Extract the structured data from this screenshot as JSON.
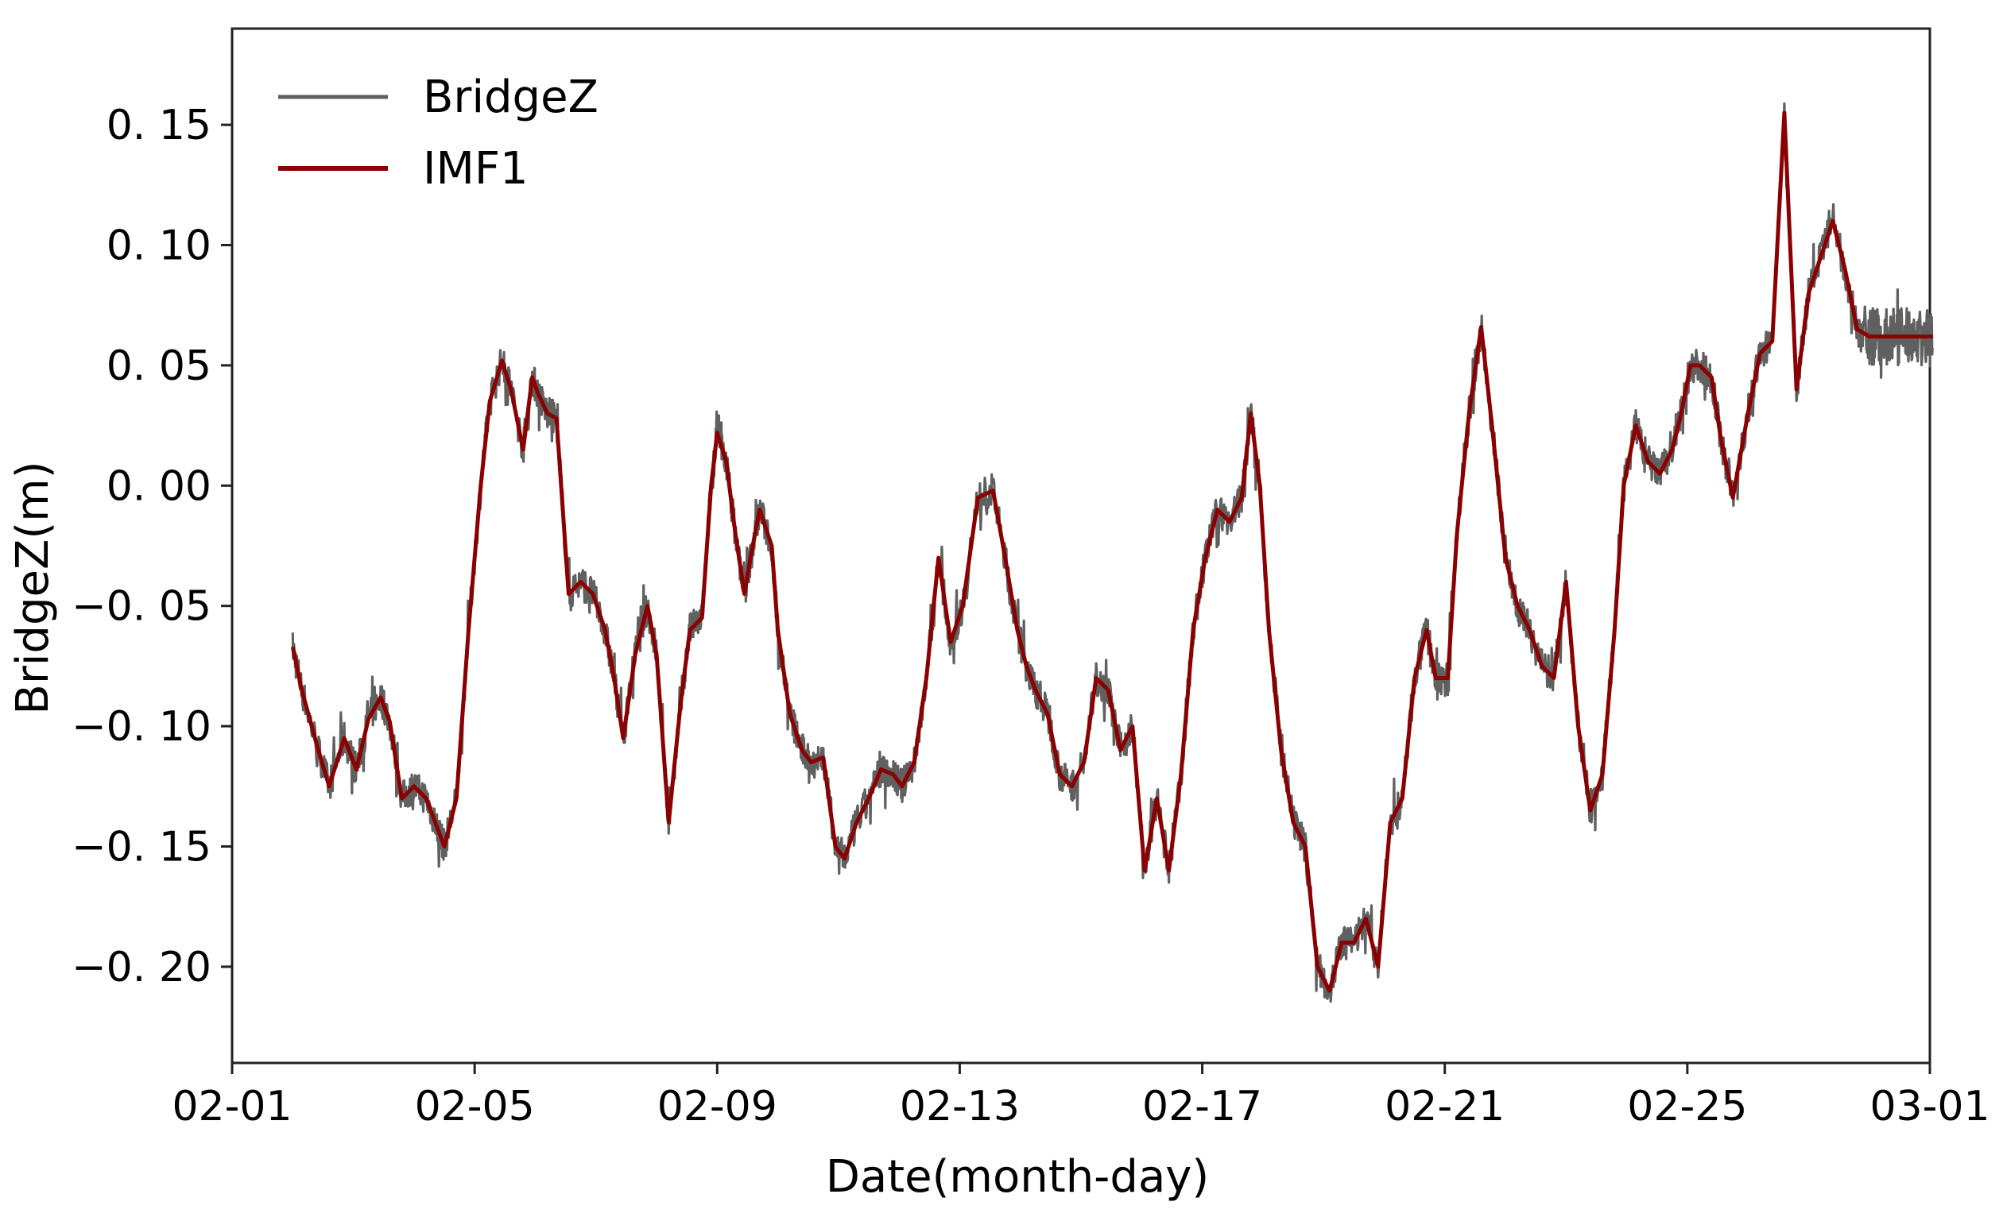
{
  "chart_data": {
    "type": "line",
    "xlabel": "Date(month-day)",
    "ylabel": "BridgeZ(m)",
    "xlim": [
      "02-01",
      "03-01"
    ],
    "ylim": [
      -0.24,
      0.19
    ],
    "x_ticks": [
      "02-01",
      "02-05",
      "02-09",
      "02-13",
      "02-17",
      "02-21",
      "02-25",
      "03-01"
    ],
    "y_ticks": [
      {
        "value": 0.15,
        "label": "0. 15"
      },
      {
        "value": 0.1,
        "label": "0. 10"
      },
      {
        "value": 0.05,
        "label": "0. 05"
      },
      {
        "value": 0.0,
        "label": "0. 00"
      },
      {
        "value": -0.05,
        "label": "−0. 05"
      },
      {
        "value": -0.1,
        "label": "−0. 10"
      },
      {
        "value": -0.15,
        "label": "−0. 15"
      },
      {
        "value": -0.2,
        "label": "−0. 20"
      }
    ],
    "legend_position": "top-left",
    "grid": false,
    "series": [
      {
        "name": "BridgeZ",
        "color": "#606060",
        "noisy": true
      },
      {
        "name": "IMF1",
        "color": "#8b0000",
        "noisy": false
      }
    ],
    "shared_x_days": [
      1.0,
      1.15,
      1.4,
      1.6,
      1.85,
      2.05,
      2.25,
      2.45,
      2.6,
      2.8,
      3.0,
      3.2,
      3.35,
      3.5,
      3.7,
      3.9,
      4.1,
      4.25,
      4.45,
      4.6,
      4.8,
      4.95,
      5.05,
      5.2,
      5.35,
      5.55,
      5.75,
      5.95,
      6.15,
      6.3,
      6.45,
      6.65,
      6.85,
      7.0,
      7.2,
      7.4,
      7.55,
      7.75,
      7.9,
      8.0,
      8.15,
      8.3,
      8.45,
      8.55,
      8.7,
      8.9,
      9.0,
      9.2,
      9.4,
      9.55,
      9.75,
      9.95,
      10.1,
      10.3,
      10.5,
      10.7,
      10.9,
      11.05,
      11.25,
      11.45,
      11.65,
      11.85,
      12.05,
      12.3,
      12.55,
      12.75,
      12.95,
      13.1,
      13.25,
      13.45,
      13.65,
      13.85,
      14.05,
      14.25,
      14.45,
      14.65,
      14.85,
      15.05,
      15.25,
      15.45,
      15.65,
      15.85,
      16.05,
      16.25,
      16.45,
      16.65,
      16.8,
      16.95,
      17.1,
      17.3,
      17.5,
      17.7,
      17.9,
      18.1,
      18.3,
      18.5,
      18.7,
      18.9,
      19.1,
      19.3,
      19.5,
      19.7,
      19.85,
      20.05,
      20.2,
      20.4,
      20.6,
      20.8,
      21.0,
      21.2,
      21.4,
      21.6,
      21.8,
      22.0,
      22.2,
      22.4,
      22.6,
      22.8,
      22.95,
      23.15,
      23.35,
      23.55,
      23.75,
      23.9,
      24.05,
      24.2,
      24.4,
      24.55,
      24.75,
      25.0,
      25.2,
      25.4,
      25.6,
      25.8,
      26.0,
      26.2,
      26.4,
      26.6,
      26.8,
      27.0,
      27.1,
      27.25,
      27.4,
      27.55,
      27.7,
      27.9,
      28.05,
      28.2
    ],
    "shared_y_imf1": [
      -0.067,
      -0.085,
      -0.108,
      -0.125,
      -0.105,
      -0.118,
      -0.097,
      -0.088,
      -0.098,
      -0.13,
      -0.125,
      -0.13,
      -0.14,
      -0.15,
      -0.13,
      -0.06,
      0.0,
      0.035,
      0.052,
      0.04,
      0.015,
      0.045,
      0.038,
      0.03,
      0.028,
      -0.045,
      -0.04,
      -0.045,
      -0.06,
      -0.08,
      -0.105,
      -0.07,
      -0.05,
      -0.07,
      -0.14,
      -0.09,
      -0.06,
      -0.055,
      0.0,
      0.022,
      0.01,
      -0.02,
      -0.045,
      -0.03,
      -0.01,
      -0.025,
      -0.06,
      -0.095,
      -0.11,
      -0.115,
      -0.113,
      -0.15,
      -0.155,
      -0.14,
      -0.13,
      -0.118,
      -0.12,
      -0.125,
      -0.115,
      -0.08,
      -0.03,
      -0.065,
      -0.05,
      -0.005,
      -0.002,
      -0.03,
      -0.06,
      -0.075,
      -0.085,
      -0.095,
      -0.12,
      -0.125,
      -0.115,
      -0.08,
      -0.085,
      -0.11,
      -0.1,
      -0.16,
      -0.13,
      -0.16,
      -0.12,
      -0.06,
      -0.03,
      -0.01,
      -0.015,
      -0.005,
      0.03,
      0.0,
      -0.06,
      -0.11,
      -0.14,
      -0.15,
      -0.2,
      -0.21,
      -0.19,
      -0.19,
      -0.18,
      -0.2,
      -0.14,
      -0.13,
      -0.08,
      -0.06,
      -0.08,
      -0.08,
      -0.02,
      0.03,
      0.066,
      0.02,
      -0.03,
      -0.05,
      -0.06,
      -0.075,
      -0.08,
      -0.04,
      -0.1,
      -0.135,
      -0.12,
      -0.06,
      0.0,
      0.025,
      0.01,
      0.005,
      0.015,
      0.03,
      0.05,
      0.05,
      0.045,
      0.02,
      -0.005,
      0.03,
      0.055,
      0.06,
      0.155,
      0.04,
      0.08,
      0.095,
      0.11,
      0.09,
      0.065,
      0.062,
      0.062,
      0.062,
      0.062,
      0.062,
      0.062,
      0.062,
      0.062
    ]
  },
  "legend": {
    "item1": "BridgeZ",
    "item2": "IMF1"
  }
}
